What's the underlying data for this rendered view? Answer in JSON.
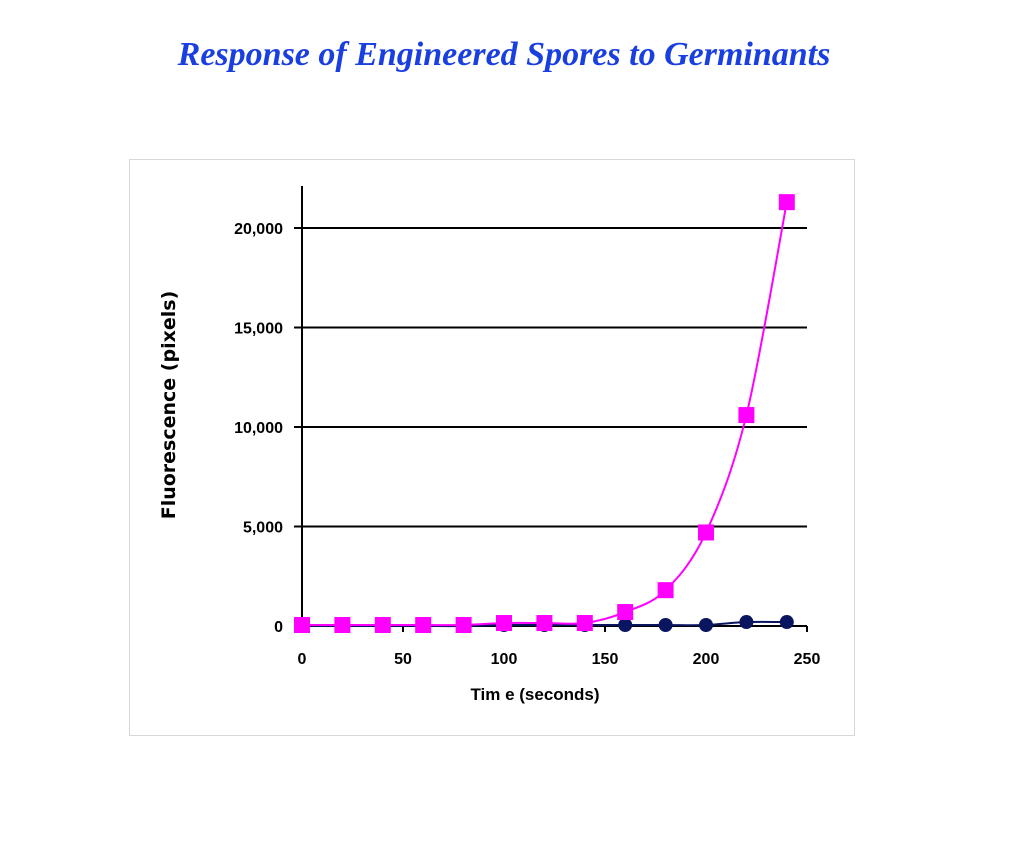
{
  "slide": {
    "title": "Response of Engineered Spores to Germinants"
  },
  "chart_data": {
    "type": "line",
    "title": "",
    "xlabel": "Tim e (seconds)",
    "ylabel": "Fluorescence (pixels)",
    "xlim": [
      0,
      250
    ],
    "ylim": [
      0,
      22000
    ],
    "x_ticks": [
      0,
      50,
      100,
      150,
      200,
      250
    ],
    "x_tick_labels": [
      "0",
      "50",
      "100",
      "150",
      "200",
      "250"
    ],
    "y_ticks": [
      0,
      5000,
      10000,
      15000,
      20000
    ],
    "y_tick_labels": [
      "0",
      "5,000",
      "10,000",
      "15,000",
      "20,000"
    ],
    "grid": "horizontal",
    "legend": "none",
    "series": [
      {
        "marker": "circle",
        "color": "#0a1560",
        "x": [
          0,
          20,
          40,
          60,
          80,
          100,
          120,
          140,
          160,
          180,
          200,
          220,
          240
        ],
        "y": [
          0,
          0,
          0,
          0,
          0,
          50,
          50,
          50,
          50,
          50,
          50,
          200,
          200
        ]
      },
      {
        "marker": "square",
        "color": "#ff00ff",
        "x": [
          0,
          20,
          40,
          60,
          80,
          100,
          120,
          140,
          160,
          180,
          200,
          220,
          240
        ],
        "y": [
          50,
          50,
          50,
          50,
          50,
          150,
          150,
          150,
          700,
          1800,
          4700,
          10600,
          21300
        ]
      }
    ]
  }
}
